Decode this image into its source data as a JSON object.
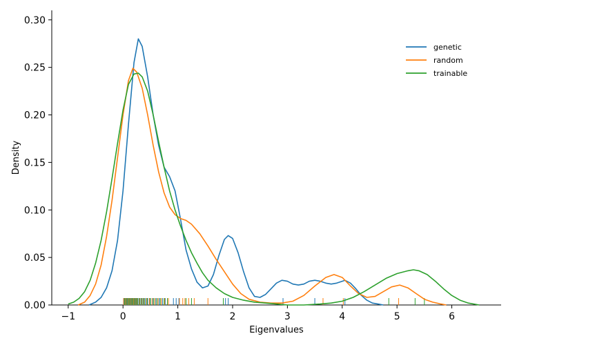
{
  "chart_data": {
    "type": "line",
    "title": "",
    "xlabel": "Eigenvalues",
    "ylabel": "Density",
    "xlim": [
      -1.3,
      6.9
    ],
    "ylim": [
      0,
      0.31
    ],
    "xticks": [
      -1,
      0,
      1,
      2,
      3,
      4,
      5,
      6
    ],
    "xtick_labels": [
      "−1",
      "0",
      "1",
      "2",
      "3",
      "4",
      "5",
      "6"
    ],
    "yticks": [
      0.0,
      0.05,
      0.1,
      0.15,
      0.2,
      0.25,
      0.3
    ],
    "ytick_labels": [
      "0.00",
      "0.05",
      "0.10",
      "0.15",
      "0.20",
      "0.25",
      "0.30"
    ],
    "grid": false,
    "legend_position": "top-right",
    "series": [
      {
        "name": "genetic",
        "color": "#1f77b4",
        "points": [
          [
            -0.62,
            0.0
          ],
          [
            -0.5,
            0.003
          ],
          [
            -0.4,
            0.008
          ],
          [
            -0.3,
            0.018
          ],
          [
            -0.2,
            0.036
          ],
          [
            -0.1,
            0.068
          ],
          [
            0.0,
            0.12
          ],
          [
            0.1,
            0.19
          ],
          [
            0.2,
            0.255
          ],
          [
            0.28,
            0.28
          ],
          [
            0.35,
            0.272
          ],
          [
            0.45,
            0.24
          ],
          [
            0.55,
            0.2
          ],
          [
            0.65,
            0.168
          ],
          [
            0.75,
            0.145
          ],
          [
            0.85,
            0.135
          ],
          [
            0.95,
            0.12
          ],
          [
            1.05,
            0.09
          ],
          [
            1.15,
            0.058
          ],
          [
            1.25,
            0.038
          ],
          [
            1.35,
            0.024
          ],
          [
            1.45,
            0.018
          ],
          [
            1.55,
            0.02
          ],
          [
            1.65,
            0.032
          ],
          [
            1.75,
            0.052
          ],
          [
            1.85,
            0.069
          ],
          [
            1.92,
            0.073
          ],
          [
            2.0,
            0.07
          ],
          [
            2.1,
            0.055
          ],
          [
            2.2,
            0.035
          ],
          [
            2.3,
            0.018
          ],
          [
            2.4,
            0.009
          ],
          [
            2.5,
            0.008
          ],
          [
            2.6,
            0.011
          ],
          [
            2.7,
            0.017
          ],
          [
            2.8,
            0.023
          ],
          [
            2.9,
            0.026
          ],
          [
            3.0,
            0.025
          ],
          [
            3.1,
            0.022
          ],
          [
            3.2,
            0.021
          ],
          [
            3.3,
            0.022
          ],
          [
            3.4,
            0.025
          ],
          [
            3.5,
            0.026
          ],
          [
            3.6,
            0.025
          ],
          [
            3.7,
            0.023
          ],
          [
            3.8,
            0.022
          ],
          [
            3.9,
            0.023
          ],
          [
            4.0,
            0.025
          ],
          [
            4.05,
            0.026
          ],
          [
            4.15,
            0.023
          ],
          [
            4.25,
            0.017
          ],
          [
            4.35,
            0.01
          ],
          [
            4.45,
            0.005
          ],
          [
            4.55,
            0.002
          ],
          [
            4.65,
            0.001
          ],
          [
            4.75,
            0.0
          ]
        ]
      },
      {
        "name": "random",
        "color": "#ff7f0e",
        "points": [
          [
            -0.82,
            0.0
          ],
          [
            -0.7,
            0.003
          ],
          [
            -0.6,
            0.01
          ],
          [
            -0.5,
            0.022
          ],
          [
            -0.4,
            0.042
          ],
          [
            -0.3,
            0.072
          ],
          [
            -0.2,
            0.11
          ],
          [
            -0.1,
            0.155
          ],
          [
            0.0,
            0.2
          ],
          [
            0.1,
            0.236
          ],
          [
            0.18,
            0.249
          ],
          [
            0.25,
            0.245
          ],
          [
            0.35,
            0.228
          ],
          [
            0.45,
            0.2
          ],
          [
            0.55,
            0.168
          ],
          [
            0.65,
            0.14
          ],
          [
            0.75,
            0.118
          ],
          [
            0.85,
            0.103
          ],
          [
            0.95,
            0.095
          ],
          [
            1.05,
            0.091
          ],
          [
            1.15,
            0.089
          ],
          [
            1.25,
            0.085
          ],
          [
            1.4,
            0.075
          ],
          [
            1.55,
            0.062
          ],
          [
            1.7,
            0.048
          ],
          [
            1.85,
            0.035
          ],
          [
            2.0,
            0.022
          ],
          [
            2.15,
            0.012
          ],
          [
            2.3,
            0.006
          ],
          [
            2.5,
            0.003
          ],
          [
            2.7,
            0.002
          ],
          [
            2.9,
            0.002
          ],
          [
            3.1,
            0.004
          ],
          [
            3.3,
            0.01
          ],
          [
            3.5,
            0.02
          ],
          [
            3.7,
            0.029
          ],
          [
            3.85,
            0.032
          ],
          [
            4.0,
            0.029
          ],
          [
            4.15,
            0.02
          ],
          [
            4.3,
            0.012
          ],
          [
            4.45,
            0.008
          ],
          [
            4.6,
            0.009
          ],
          [
            4.75,
            0.014
          ],
          [
            4.9,
            0.019
          ],
          [
            5.05,
            0.021
          ],
          [
            5.2,
            0.018
          ],
          [
            5.35,
            0.012
          ],
          [
            5.5,
            0.006
          ],
          [
            5.65,
            0.003
          ],
          [
            5.8,
            0.001
          ],
          [
            5.9,
            0.0
          ]
        ]
      },
      {
        "name": "trainable",
        "color": "#2ca02c",
        "points": [
          [
            -1.0,
            0.001
          ],
          [
            -0.9,
            0.003
          ],
          [
            -0.8,
            0.007
          ],
          [
            -0.7,
            0.014
          ],
          [
            -0.6,
            0.026
          ],
          [
            -0.5,
            0.044
          ],
          [
            -0.4,
            0.068
          ],
          [
            -0.3,
            0.098
          ],
          [
            -0.2,
            0.133
          ],
          [
            -0.1,
            0.17
          ],
          [
            0.0,
            0.205
          ],
          [
            0.1,
            0.232
          ],
          [
            0.2,
            0.243
          ],
          [
            0.28,
            0.244
          ],
          [
            0.35,
            0.24
          ],
          [
            0.45,
            0.225
          ],
          [
            0.55,
            0.2
          ],
          [
            0.65,
            0.172
          ],
          [
            0.75,
            0.145
          ],
          [
            0.85,
            0.12
          ],
          [
            0.95,
            0.1
          ],
          [
            1.05,
            0.083
          ],
          [
            1.15,
            0.068
          ],
          [
            1.25,
            0.055
          ],
          [
            1.35,
            0.044
          ],
          [
            1.45,
            0.034
          ],
          [
            1.55,
            0.026
          ],
          [
            1.7,
            0.018
          ],
          [
            1.85,
            0.012
          ],
          [
            2.0,
            0.008
          ],
          [
            2.2,
            0.005
          ],
          [
            2.4,
            0.003
          ],
          [
            2.6,
            0.002
          ],
          [
            2.8,
            0.001
          ],
          [
            3.0,
            0.0
          ],
          [
            3.3,
            0.0
          ],
          [
            3.6,
            0.001
          ],
          [
            3.8,
            0.002
          ],
          [
            4.0,
            0.004
          ],
          [
            4.2,
            0.008
          ],
          [
            4.4,
            0.014
          ],
          [
            4.6,
            0.021
          ],
          [
            4.8,
            0.028
          ],
          [
            5.0,
            0.033
          ],
          [
            5.2,
            0.036
          ],
          [
            5.3,
            0.037
          ],
          [
            5.4,
            0.036
          ],
          [
            5.55,
            0.032
          ],
          [
            5.7,
            0.025
          ],
          [
            5.85,
            0.017
          ],
          [
            6.0,
            0.01
          ],
          [
            6.15,
            0.005
          ],
          [
            6.3,
            0.002
          ],
          [
            6.5,
            0.0
          ]
        ]
      }
    ],
    "rugs": [
      {
        "name": "genetic",
        "color": "#1f77b4",
        "values": [
          0.02,
          0.05,
          0.08,
          0.11,
          0.14,
          0.17,
          0.2,
          0.23,
          0.26,
          0.29,
          0.33,
          0.37,
          0.41,
          0.45,
          0.49,
          0.54,
          0.6,
          0.66,
          0.72,
          0.77,
          0.92,
          0.97,
          1.02,
          1.87,
          1.92,
          2.92,
          3.5,
          4.05
        ]
      },
      {
        "name": "random",
        "color": "#ff7f0e",
        "values": [
          0.01,
          0.04,
          0.07,
          0.1,
          0.13,
          0.16,
          0.19,
          0.22,
          0.25,
          0.3,
          0.34,
          0.38,
          0.43,
          0.48,
          0.53,
          0.58,
          0.64,
          0.7,
          0.76,
          0.83,
          1.03,
          1.09,
          1.13,
          1.2,
          1.3,
          1.55,
          3.65,
          4.02,
          5.03
        ]
      },
      {
        "name": "trainable",
        "color": "#2ca02c",
        "values": [
          0.03,
          0.06,
          0.09,
          0.12,
          0.15,
          0.18,
          0.21,
          0.24,
          0.27,
          0.31,
          0.35,
          0.39,
          0.44,
          0.5,
          0.56,
          0.62,
          0.68,
          0.75,
          0.81,
          1.15,
          1.25,
          1.83,
          4.85,
          5.33,
          5.5
        ]
      }
    ]
  }
}
